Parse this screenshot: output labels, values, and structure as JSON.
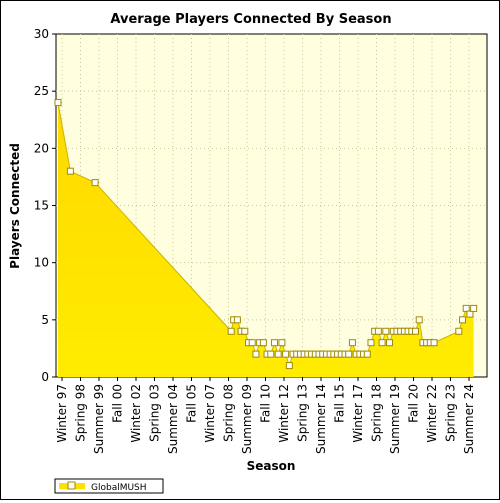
{
  "chart_data": {
    "type": "area",
    "title": "Average Players Connected By Season",
    "xlabel": "Season",
    "ylabel": "Players Connected",
    "ylim": [
      0,
      30
    ],
    "yticks": [
      0,
      5,
      10,
      15,
      20,
      25,
      30
    ],
    "xticks": [
      "Winter 97",
      "Spring 98",
      "Summer 99",
      "Fall 00",
      "Winter 02",
      "Spring 03",
      "Summer 04",
      "Fall 05",
      "Winter 07",
      "Spring 08",
      "Summer 09",
      "Fall 10",
      "Winter 12",
      "Spring 13",
      "Summer 14",
      "Fall 15",
      "Winter 17",
      "Spring 18",
      "Summer 19",
      "Fall 20",
      "Winter 22",
      "Spring 23",
      "Summer 24"
    ],
    "series": [
      {
        "name": "GlobalMUSH",
        "values": [
          [
            0,
            24
          ],
          [
            1,
            18
          ],
          [
            3,
            17
          ],
          [
            14,
            4
          ],
          [
            14.2,
            5
          ],
          [
            14.5,
            5
          ],
          [
            14.8,
            4
          ],
          [
            15.1,
            4
          ],
          [
            15.4,
            3
          ],
          [
            15.7,
            3
          ],
          [
            16.0,
            2
          ],
          [
            16.3,
            3
          ],
          [
            16.6,
            3
          ],
          [
            16.9,
            2
          ],
          [
            17.2,
            2
          ],
          [
            17.5,
            3
          ],
          [
            17.8,
            2
          ],
          [
            18.1,
            3
          ],
          [
            18.4,
            2
          ],
          [
            18.7,
            1
          ],
          [
            19.0,
            2
          ],
          [
            19.3,
            2
          ],
          [
            19.6,
            2
          ],
          [
            19.9,
            2
          ],
          [
            20.2,
            2
          ],
          [
            20.5,
            2
          ],
          [
            20.8,
            2
          ],
          [
            21.1,
            2
          ],
          [
            21.4,
            2
          ],
          [
            21.7,
            2
          ],
          [
            22.0,
            2
          ],
          [
            22.3,
            2
          ],
          [
            22.6,
            2
          ],
          [
            22.9,
            2
          ],
          [
            23.2,
            2
          ],
          [
            23.5,
            2
          ],
          [
            23.8,
            3
          ],
          [
            24.1,
            2
          ],
          [
            24.4,
            2
          ],
          [
            24.7,
            2
          ],
          [
            25.0,
            2
          ],
          [
            25.3,
            3
          ],
          [
            25.6,
            4
          ],
          [
            25.9,
            4
          ],
          [
            26.2,
            3
          ],
          [
            26.5,
            4
          ],
          [
            26.8,
            3
          ],
          [
            27.1,
            4
          ],
          [
            27.4,
            4
          ],
          [
            27.7,
            4
          ],
          [
            28.0,
            4
          ],
          [
            28.3,
            4
          ],
          [
            28.6,
            4
          ],
          [
            28.9,
            4
          ],
          [
            29.2,
            5
          ],
          [
            29.5,
            3
          ],
          [
            29.8,
            3
          ],
          [
            30.1,
            3
          ],
          [
            30.4,
            3
          ],
          [
            32.4,
            4
          ],
          [
            32.7,
            5
          ],
          [
            33.0,
            6
          ],
          [
            33.3,
            5.5
          ],
          [
            33.6,
            6
          ]
        ]
      }
    ],
    "legend": "bottom-left",
    "grid": true,
    "colors": {
      "fill": "#ffe000",
      "fill_light": "#fff8a8",
      "plot_bg": "#ffffe0",
      "line": "#c8b400",
      "marker_fill": "#ffffff",
      "marker_stroke": "#a08a00"
    }
  }
}
